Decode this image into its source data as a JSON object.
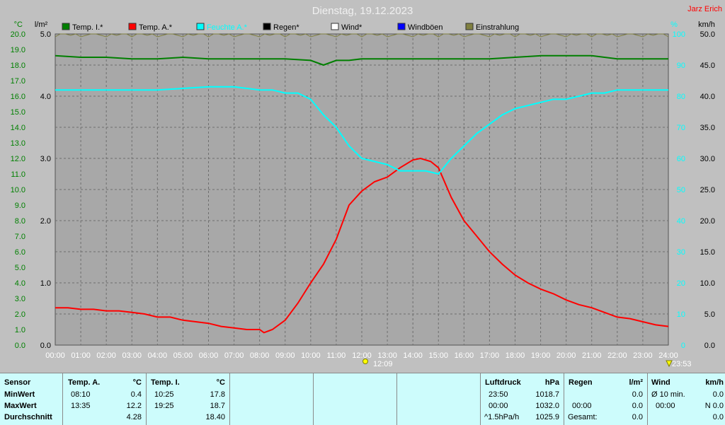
{
  "header": {
    "title": "Dienstag, 19.12.2023",
    "author": "Jarz Erich"
  },
  "axes": {
    "left_temp_unit": "°C",
    "left_rain_unit": "l/m²",
    "right_pct_unit": "%",
    "right_wind_unit": "km/h",
    "temp_ticks": [
      "0.0",
      "1.0",
      "2.0",
      "3.0",
      "4.0",
      "5.0",
      "6.0",
      "7.0",
      "8.0",
      "9.0",
      "10.0",
      "11.0",
      "12.0",
      "13.0",
      "14.0",
      "15.0",
      "16.0",
      "17.0",
      "18.0",
      "19.0",
      "20.0"
    ],
    "rain_ticks": [
      "0.0",
      "1.0",
      "2.0",
      "3.0",
      "4.0",
      "5.0"
    ],
    "pct_ticks": [
      "0",
      "10",
      "20",
      "30",
      "40",
      "50",
      "60",
      "70",
      "80",
      "90",
      "100"
    ],
    "wind_ticks": [
      "0.0",
      "5.0",
      "10.0",
      "15.0",
      "20.0",
      "25.0",
      "30.0",
      "35.0",
      "40.0",
      "45.0",
      "50.0"
    ],
    "time_ticks": [
      "00:00",
      "01:00",
      "02:00",
      "03:00",
      "04:00",
      "05:00",
      "06:00",
      "07:00",
      "08:00",
      "09:00",
      "10:00",
      "11:00",
      "12:00",
      "13:00",
      "14:00",
      "15:00",
      "16:00",
      "17:00",
      "18:00",
      "19:00",
      "20:00",
      "21:00",
      "22:00",
      "23:00",
      "24:00"
    ]
  },
  "markers": {
    "sun": "12:09",
    "moon": "23:53"
  },
  "legend": [
    {
      "label": "Temp. I.*",
      "color": "#007f00"
    },
    {
      "label": "Temp. A.*",
      "color": "#ff0000"
    },
    {
      "label": "Feuchte A.*",
      "color": "#00ffff"
    },
    {
      "label": "Regen*",
      "color": "#000000"
    },
    {
      "label": "Wind*",
      "color": "#ffffff"
    },
    {
      "label": "Windböen",
      "color": "#0000ff"
    },
    {
      "label": "Einstrahlung",
      "color": "#808040"
    }
  ],
  "chart_data": {
    "type": "line",
    "title": "Dienstag, 19.12.2023",
    "x_unit": "hour",
    "xlim": [
      0,
      24
    ],
    "temp_ylim": [
      0,
      20
    ],
    "pct_ylim": [
      0,
      100
    ],
    "grid": true,
    "legend_position": "top",
    "series": [
      {
        "name": "Temp. A.*",
        "axis": "temp",
        "color": "#ff0000",
        "x": [
          0,
          0.5,
          1,
          1.5,
          2,
          2.5,
          3,
          3.5,
          4,
          4.5,
          5,
          5.5,
          6,
          6.5,
          7,
          7.5,
          8,
          8.17,
          8.5,
          9,
          9.5,
          10,
          10.5,
          11,
          11.5,
          12,
          12.5,
          13,
          13.5,
          14,
          14.3,
          14.7,
          15,
          15.5,
          16,
          16.5,
          17,
          17.5,
          18,
          18.5,
          19,
          19.5,
          20,
          20.5,
          21,
          21.5,
          22,
          22.5,
          23,
          23.5,
          24
        ],
        "values": [
          2.4,
          2.4,
          2.3,
          2.3,
          2.2,
          2.2,
          2.1,
          2.0,
          1.8,
          1.8,
          1.6,
          1.5,
          1.4,
          1.2,
          1.1,
          1.0,
          1.0,
          0.8,
          1.0,
          1.6,
          2.7,
          4.0,
          5.2,
          6.8,
          9.0,
          9.9,
          10.5,
          10.8,
          11.4,
          11.9,
          12.0,
          11.8,
          11.4,
          9.5,
          8.0,
          7.0,
          6.0,
          5.2,
          4.5,
          4.0,
          3.6,
          3.3,
          2.9,
          2.6,
          2.4,
          2.1,
          1.8,
          1.7,
          1.5,
          1.3,
          1.2
        ]
      },
      {
        "name": "Temp. I.*",
        "axis": "temp",
        "color": "#007f00",
        "x": [
          0,
          1,
          2,
          3,
          4,
          5,
          6,
          7,
          8,
          9,
          10,
          10.5,
          11,
          11.5,
          12,
          13,
          14,
          15,
          16,
          17,
          18,
          19,
          20,
          21,
          22,
          23,
          24
        ],
        "values": [
          18.6,
          18.5,
          18.5,
          18.4,
          18.4,
          18.5,
          18.4,
          18.4,
          18.4,
          18.4,
          18.3,
          18.0,
          18.3,
          18.3,
          18.4,
          18.4,
          18.4,
          18.4,
          18.4,
          18.4,
          18.5,
          18.6,
          18.6,
          18.6,
          18.4,
          18.4,
          18.4
        ]
      },
      {
        "name": "Feuchte A.*",
        "axis": "pct",
        "color": "#00ffff",
        "x": [
          0,
          1,
          2,
          3,
          4,
          5,
          6,
          7,
          8,
          8.5,
          9,
          9.5,
          10,
          10.5,
          11,
          11.5,
          12,
          12.5,
          13,
          13.5,
          14,
          14.5,
          15,
          15.5,
          16,
          16.5,
          17,
          17.5,
          18,
          18.5,
          19,
          19.5,
          20,
          20.5,
          21,
          21.5,
          22,
          23,
          24
        ],
        "values": [
          82,
          82,
          82,
          82,
          82,
          82.5,
          83,
          83,
          82,
          82,
          81,
          81,
          79,
          74,
          70,
          64,
          60,
          59,
          58,
          56,
          56,
          56,
          55,
          60,
          64,
          68,
          71,
          74,
          76,
          77,
          78,
          79,
          79,
          80,
          81,
          81,
          82,
          82,
          82
        ]
      }
    ]
  },
  "panel": {
    "col1": {
      "title": "Sensor",
      "rows": [
        "MinWert",
        "MaxWert",
        "Durchschnitt"
      ]
    },
    "col2": {
      "title": "Temp. A.",
      "unit": "°C",
      "times": [
        "08:10",
        "13:35",
        ""
      ],
      "values": [
        "0.4",
        "12.2",
        "4.28"
      ]
    },
    "col3": {
      "title": "Temp. I.",
      "unit": "°C",
      "times": [
        "10:25",
        "19:25",
        ""
      ],
      "values": [
        "17.8",
        "18.7",
        "18.40"
      ]
    },
    "col4": {
      "title": "Luftdruck",
      "unit": "hPa",
      "times": [
        "23:50",
        "00:00",
        "^1.5hPa/h"
      ],
      "values": [
        "1018.7",
        "1032.0",
        "1025.9"
      ]
    },
    "col5": {
      "title": "Regen",
      "unit": "l/m²",
      "times": [
        "",
        "00:00",
        "Gesamt:"
      ],
      "values": [
        "0.0",
        "0.0",
        "0.0"
      ]
    },
    "col6": {
      "title": "Wind",
      "unit": "km/h",
      "times": [
        "Ø 10 min.",
        "00:00",
        ""
      ],
      "values": [
        "0.0",
        "N 0.0",
        "0.0"
      ]
    }
  }
}
